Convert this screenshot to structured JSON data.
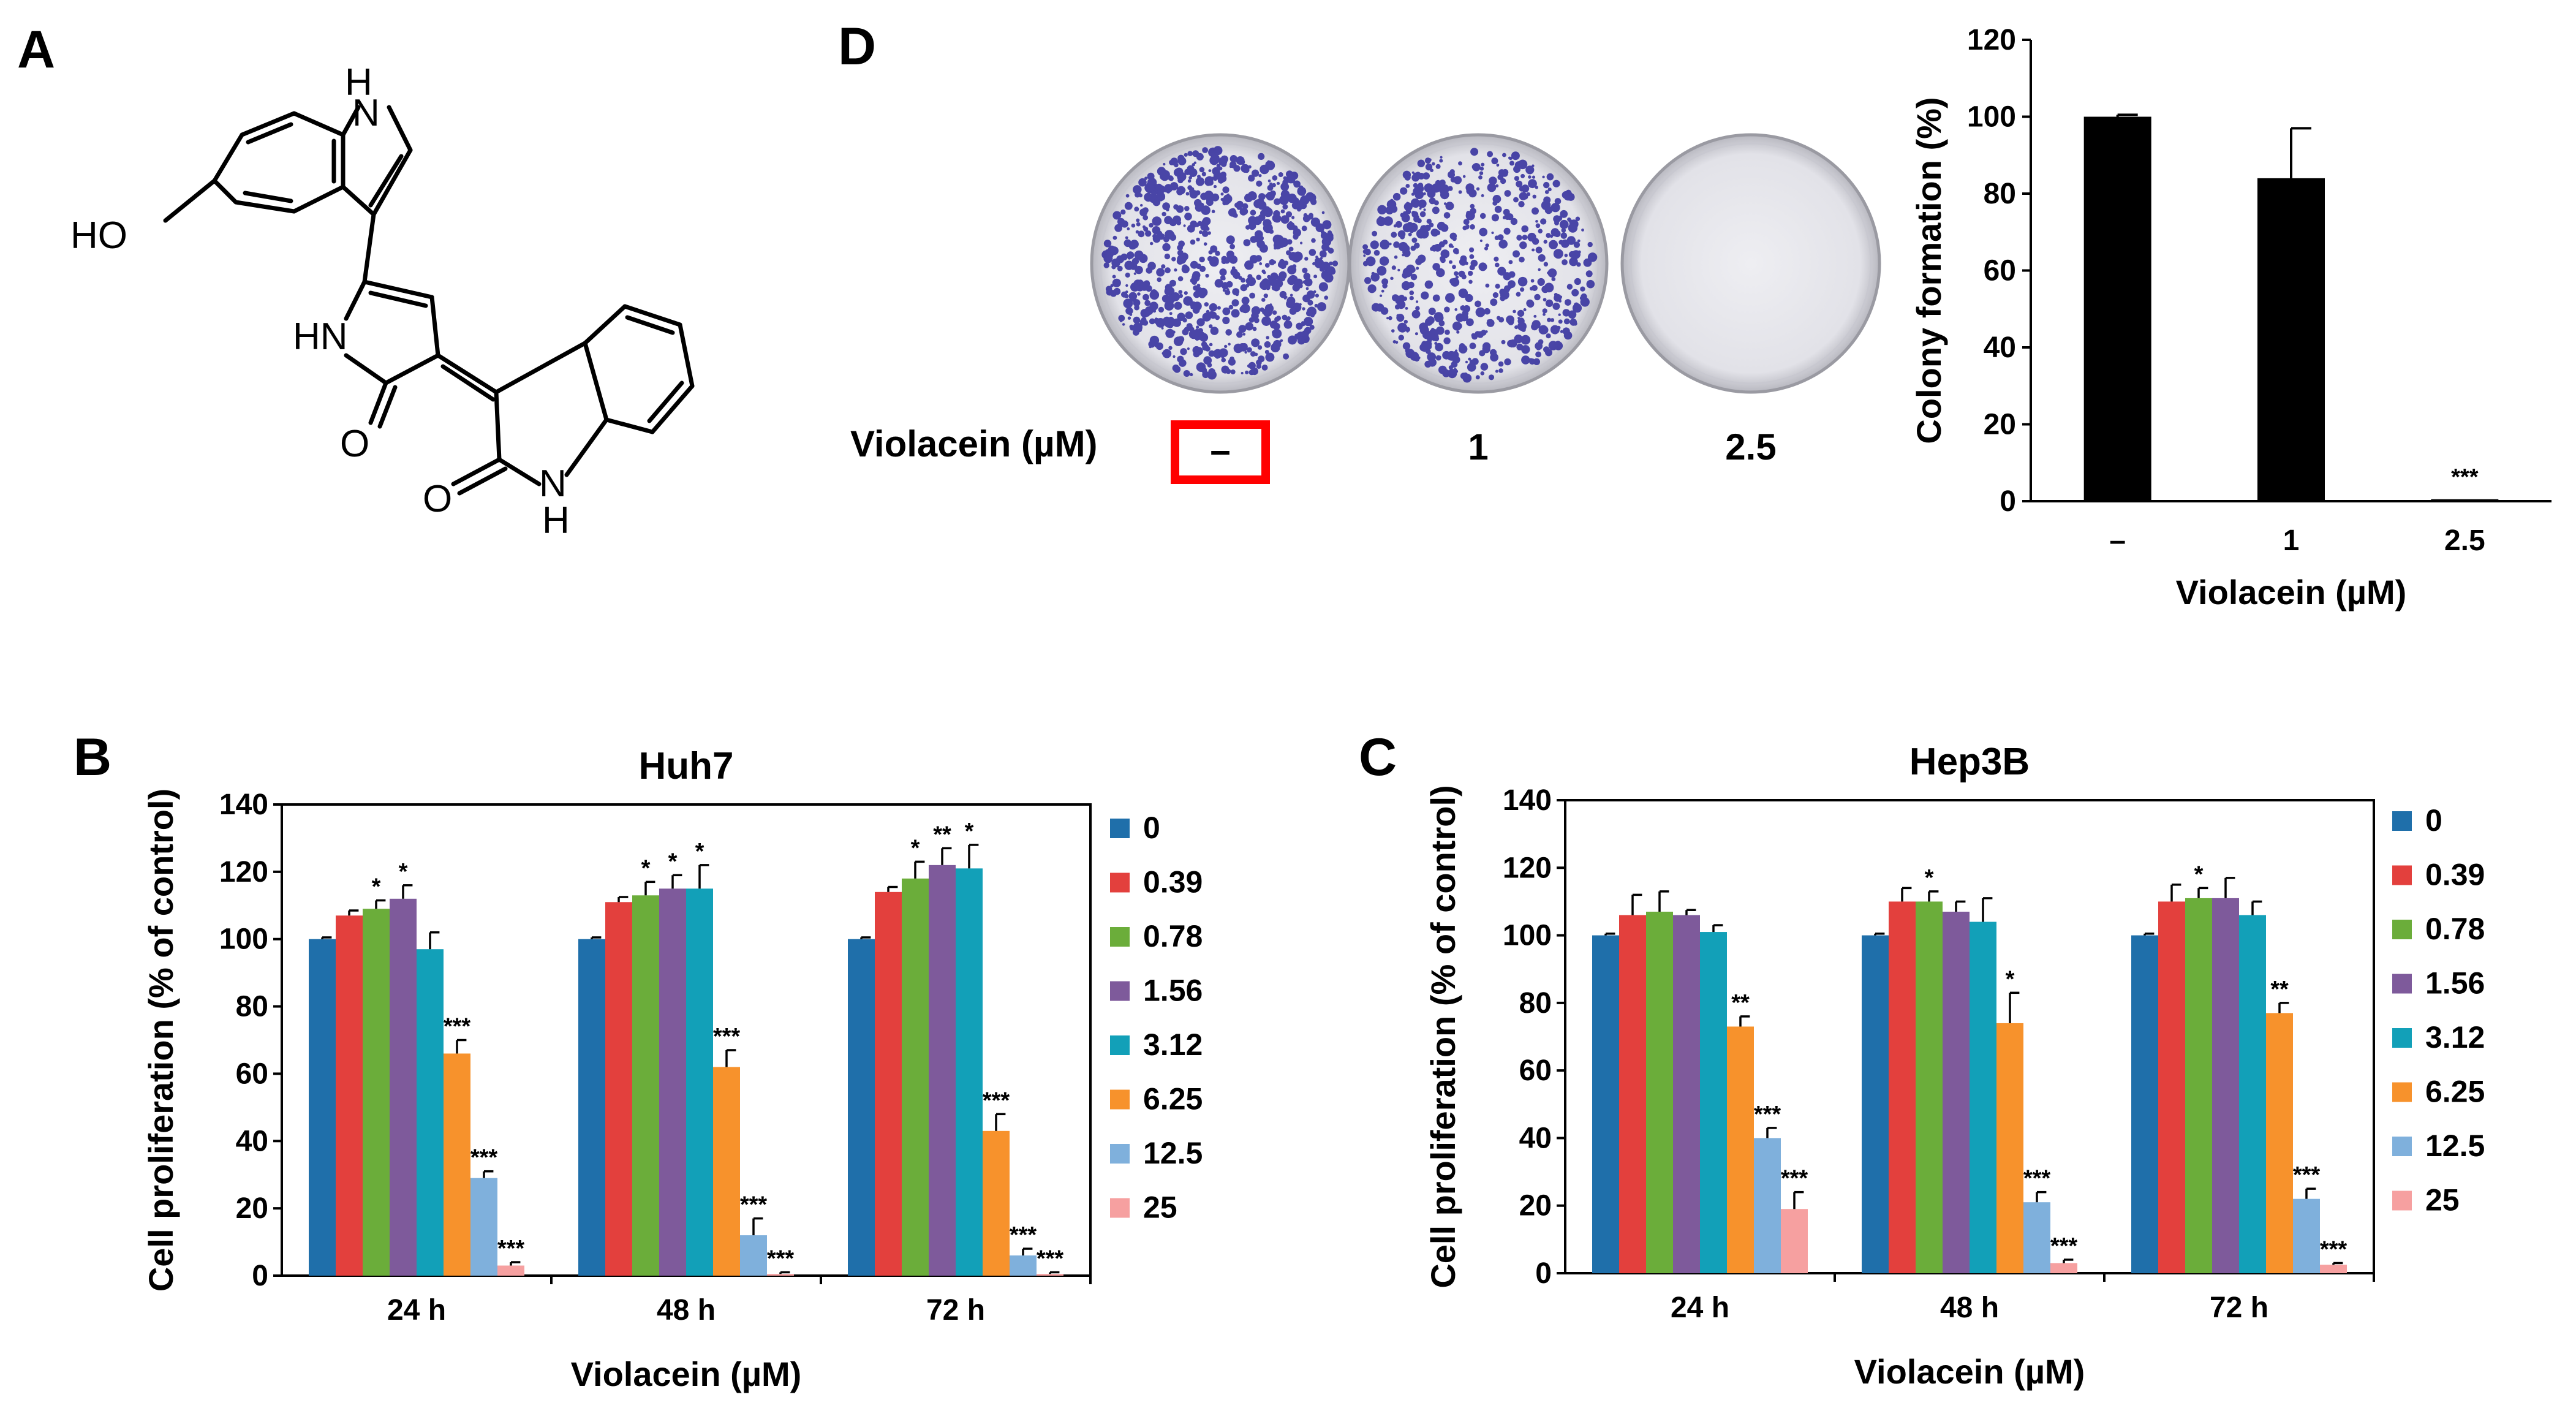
{
  "panels": {
    "a": "A",
    "b": "B",
    "c": "C",
    "d": "D"
  },
  "structure": {
    "ho": "HO",
    "h_top": "H",
    "n_top": "N",
    "hn": "HN",
    "o_left": "O",
    "o_right": "O",
    "n_bottom": "N",
    "h_bottom": "H"
  },
  "colors": {
    "0": "#1f6faa",
    "0.39": "#e3403d",
    "0.78": "#6bad3a",
    "1.56": "#7e5a9b",
    "3.12": "#12a0b8",
    "6.25": "#f7922c",
    "12.5": "#7fb0dc",
    "25": "#f6a0a0",
    "colony_bar": "#000000",
    "highlight": "#ff0000",
    "stain": "#2f2a9c"
  },
  "colony": {
    "row_label": "Violacein (µM)",
    "dishes": [
      {
        "label": "–",
        "stained": true,
        "density": 1.0
      },
      {
        "label": "1",
        "stained": true,
        "density": 0.8
      },
      {
        "label": "2.5",
        "stained": false,
        "density": 0.0
      }
    ]
  },
  "chart_data": [
    {
      "id": "B",
      "type": "bar",
      "title": "Huh7",
      "xlabel": "Violacein (µM)",
      "ylabel": "Cell proliferation (% of control)",
      "ylim": [
        0,
        140
      ],
      "yticks": [
        0,
        20,
        40,
        60,
        80,
        100,
        120,
        140
      ],
      "legend_position": "right",
      "categories": [
        "24 h",
        "48 h",
        "72 h"
      ],
      "series": [
        {
          "name": "0",
          "values": [
            100,
            100,
            100
          ],
          "errors": [
            0.5,
            0.5,
            0.5
          ],
          "sig": [
            "",
            "",
            ""
          ]
        },
        {
          "name": "0.39",
          "values": [
            107,
            111,
            114
          ],
          "errors": [
            1.5,
            1.5,
            1.5
          ],
          "sig": [
            "",
            "",
            ""
          ]
        },
        {
          "name": "0.78",
          "values": [
            109,
            113,
            118
          ],
          "errors": [
            2.5,
            4,
            5
          ],
          "sig": [
            "*",
            "*",
            "*"
          ]
        },
        {
          "name": "1.56",
          "values": [
            112,
            115,
            122
          ],
          "errors": [
            4,
            4,
            5
          ],
          "sig": [
            "*",
            "*",
            "**"
          ]
        },
        {
          "name": "3.12",
          "values": [
            97,
            115,
            121
          ],
          "errors": [
            5,
            7,
            7
          ],
          "sig": [
            "",
            "*",
            "*"
          ]
        },
        {
          "name": "6.25",
          "values": [
            66,
            62,
            43
          ],
          "errors": [
            4,
            5,
            5
          ],
          "sig": [
            "***",
            "***",
            "***"
          ]
        },
        {
          "name": "12.5",
          "values": [
            29,
            12,
            6
          ],
          "errors": [
            2,
            5,
            2
          ],
          "sig": [
            "***",
            "***",
            "***"
          ]
        },
        {
          "name": "25",
          "values": [
            3,
            0.5,
            0.5
          ],
          "errors": [
            1,
            0.5,
            0.5
          ],
          "sig": [
            "***",
            "***",
            "***"
          ]
        }
      ]
    },
    {
      "id": "C",
      "type": "bar",
      "title": "Hep3B",
      "xlabel": "Violacein (µM)",
      "ylabel": "Cell proliferation (% of control)",
      "ylim": [
        0,
        140
      ],
      "yticks": [
        0,
        20,
        40,
        60,
        80,
        100,
        120,
        140
      ],
      "legend_position": "right",
      "categories": [
        "24 h",
        "48 h",
        "72 h"
      ],
      "series": [
        {
          "name": "0",
          "values": [
            100,
            100,
            100
          ],
          "errors": [
            0.5,
            0.5,
            0.5
          ],
          "sig": [
            "",
            "",
            ""
          ]
        },
        {
          "name": "0.39",
          "values": [
            106,
            110,
            110
          ],
          "errors": [
            6,
            4,
            5
          ],
          "sig": [
            "",
            "",
            ""
          ]
        },
        {
          "name": "0.78",
          "values": [
            107,
            110,
            111
          ],
          "errors": [
            6,
            3,
            3
          ],
          "sig": [
            "",
            "*",
            "*"
          ]
        },
        {
          "name": "1.56",
          "values": [
            106,
            107,
            111
          ],
          "errors": [
            1.5,
            3,
            6
          ],
          "sig": [
            "",
            "",
            ""
          ]
        },
        {
          "name": "3.12",
          "values": [
            101,
            104,
            106
          ],
          "errors": [
            2,
            7,
            4
          ],
          "sig": [
            "",
            "",
            ""
          ]
        },
        {
          "name": "6.25",
          "values": [
            73,
            74,
            77
          ],
          "errors": [
            3,
            9,
            3
          ],
          "sig": [
            "**",
            "*",
            "**"
          ]
        },
        {
          "name": "12.5",
          "values": [
            40,
            21,
            22
          ],
          "errors": [
            3,
            3,
            3
          ],
          "sig": [
            "***",
            "***",
            "***"
          ]
        },
        {
          "name": "25",
          "values": [
            19,
            3,
            2.5
          ],
          "errors": [
            5,
            1,
            0.5
          ],
          "sig": [
            "***",
            "***",
            "***"
          ]
        }
      ]
    },
    {
      "id": "D",
      "type": "bar",
      "title": "",
      "xlabel": "Violacein (µM)",
      "ylabel": "Colony formation (%)",
      "ylim": [
        0,
        120
      ],
      "yticks": [
        0,
        20,
        40,
        60,
        80,
        100,
        120
      ],
      "categories": [
        "–",
        "1",
        "2.5"
      ],
      "values": [
        100,
        84,
        0.5
      ],
      "errors": [
        0.5,
        13,
        0
      ],
      "sig": [
        "",
        "",
        "***"
      ]
    }
  ]
}
